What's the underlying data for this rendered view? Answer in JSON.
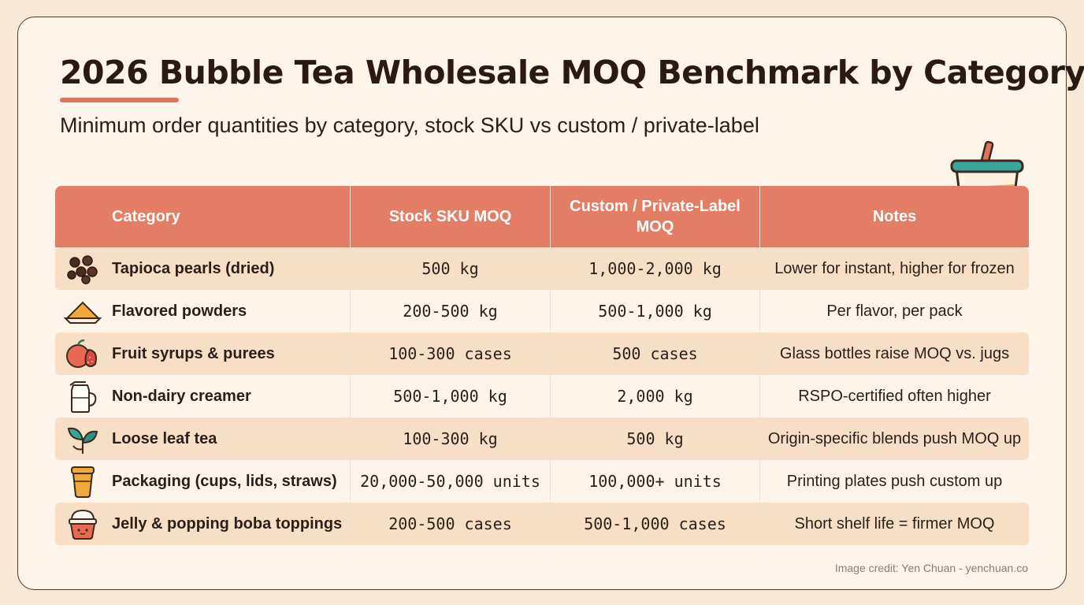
{
  "title": "2026 Bubble Tea Wholesale MOQ Benchmark by Category",
  "subtitle": "Minimum order quantities by category, stock SKU vs custom / private-label",
  "colors": {
    "header": "#e47d66",
    "accent": "#e0735b",
    "row_shade": "#f6dfc4",
    "background": "#f7e9d6"
  },
  "table": {
    "headers": [
      "Category",
      "Stock SKU MOQ",
      "Custom / Private-Label MOQ",
      "Notes"
    ],
    "rows": [
      {
        "icon": "tapioca-pearls-icon",
        "category": "Tapioca pearls (dried)",
        "stock": "500 kg",
        "custom": "1,000-2,000 kg",
        "notes": "Lower for instant, higher for frozen"
      },
      {
        "icon": "powder-icon",
        "category": "Flavored powders",
        "stock": "200-500 kg",
        "custom": "500-1,000 kg",
        "notes": "Per flavor, per pack"
      },
      {
        "icon": "fruit-icon",
        "category": "Fruit syrups & purees",
        "stock": "100-300 cases",
        "custom": "500 cases",
        "notes": "Glass bottles raise MOQ vs. jugs"
      },
      {
        "icon": "creamer-jug-icon",
        "category": "Non-dairy creamer",
        "stock": "500-1,000 kg",
        "custom": "2,000 kg",
        "notes": "RSPO-certified often higher"
      },
      {
        "icon": "tea-leaf-icon",
        "category": "Loose leaf tea",
        "stock": "100-300 kg",
        "custom": "500 kg",
        "notes": "Origin-specific blends push MOQ up"
      },
      {
        "icon": "cup-icon",
        "category": "Packaging (cups, lids, straws)",
        "stock": "20,000-50,000 units",
        "custom": "100,000+ units",
        "notes": "Printing plates push custom up"
      },
      {
        "icon": "jelly-cup-icon",
        "category": "Jelly & popping boba toppings",
        "stock": "200-500 cases",
        "custom": "500-1,000 cases",
        "notes": "Short shelf life = firmer MOQ"
      }
    ]
  },
  "credit": "Image credit: Yen Chuan - yenchuan.co"
}
